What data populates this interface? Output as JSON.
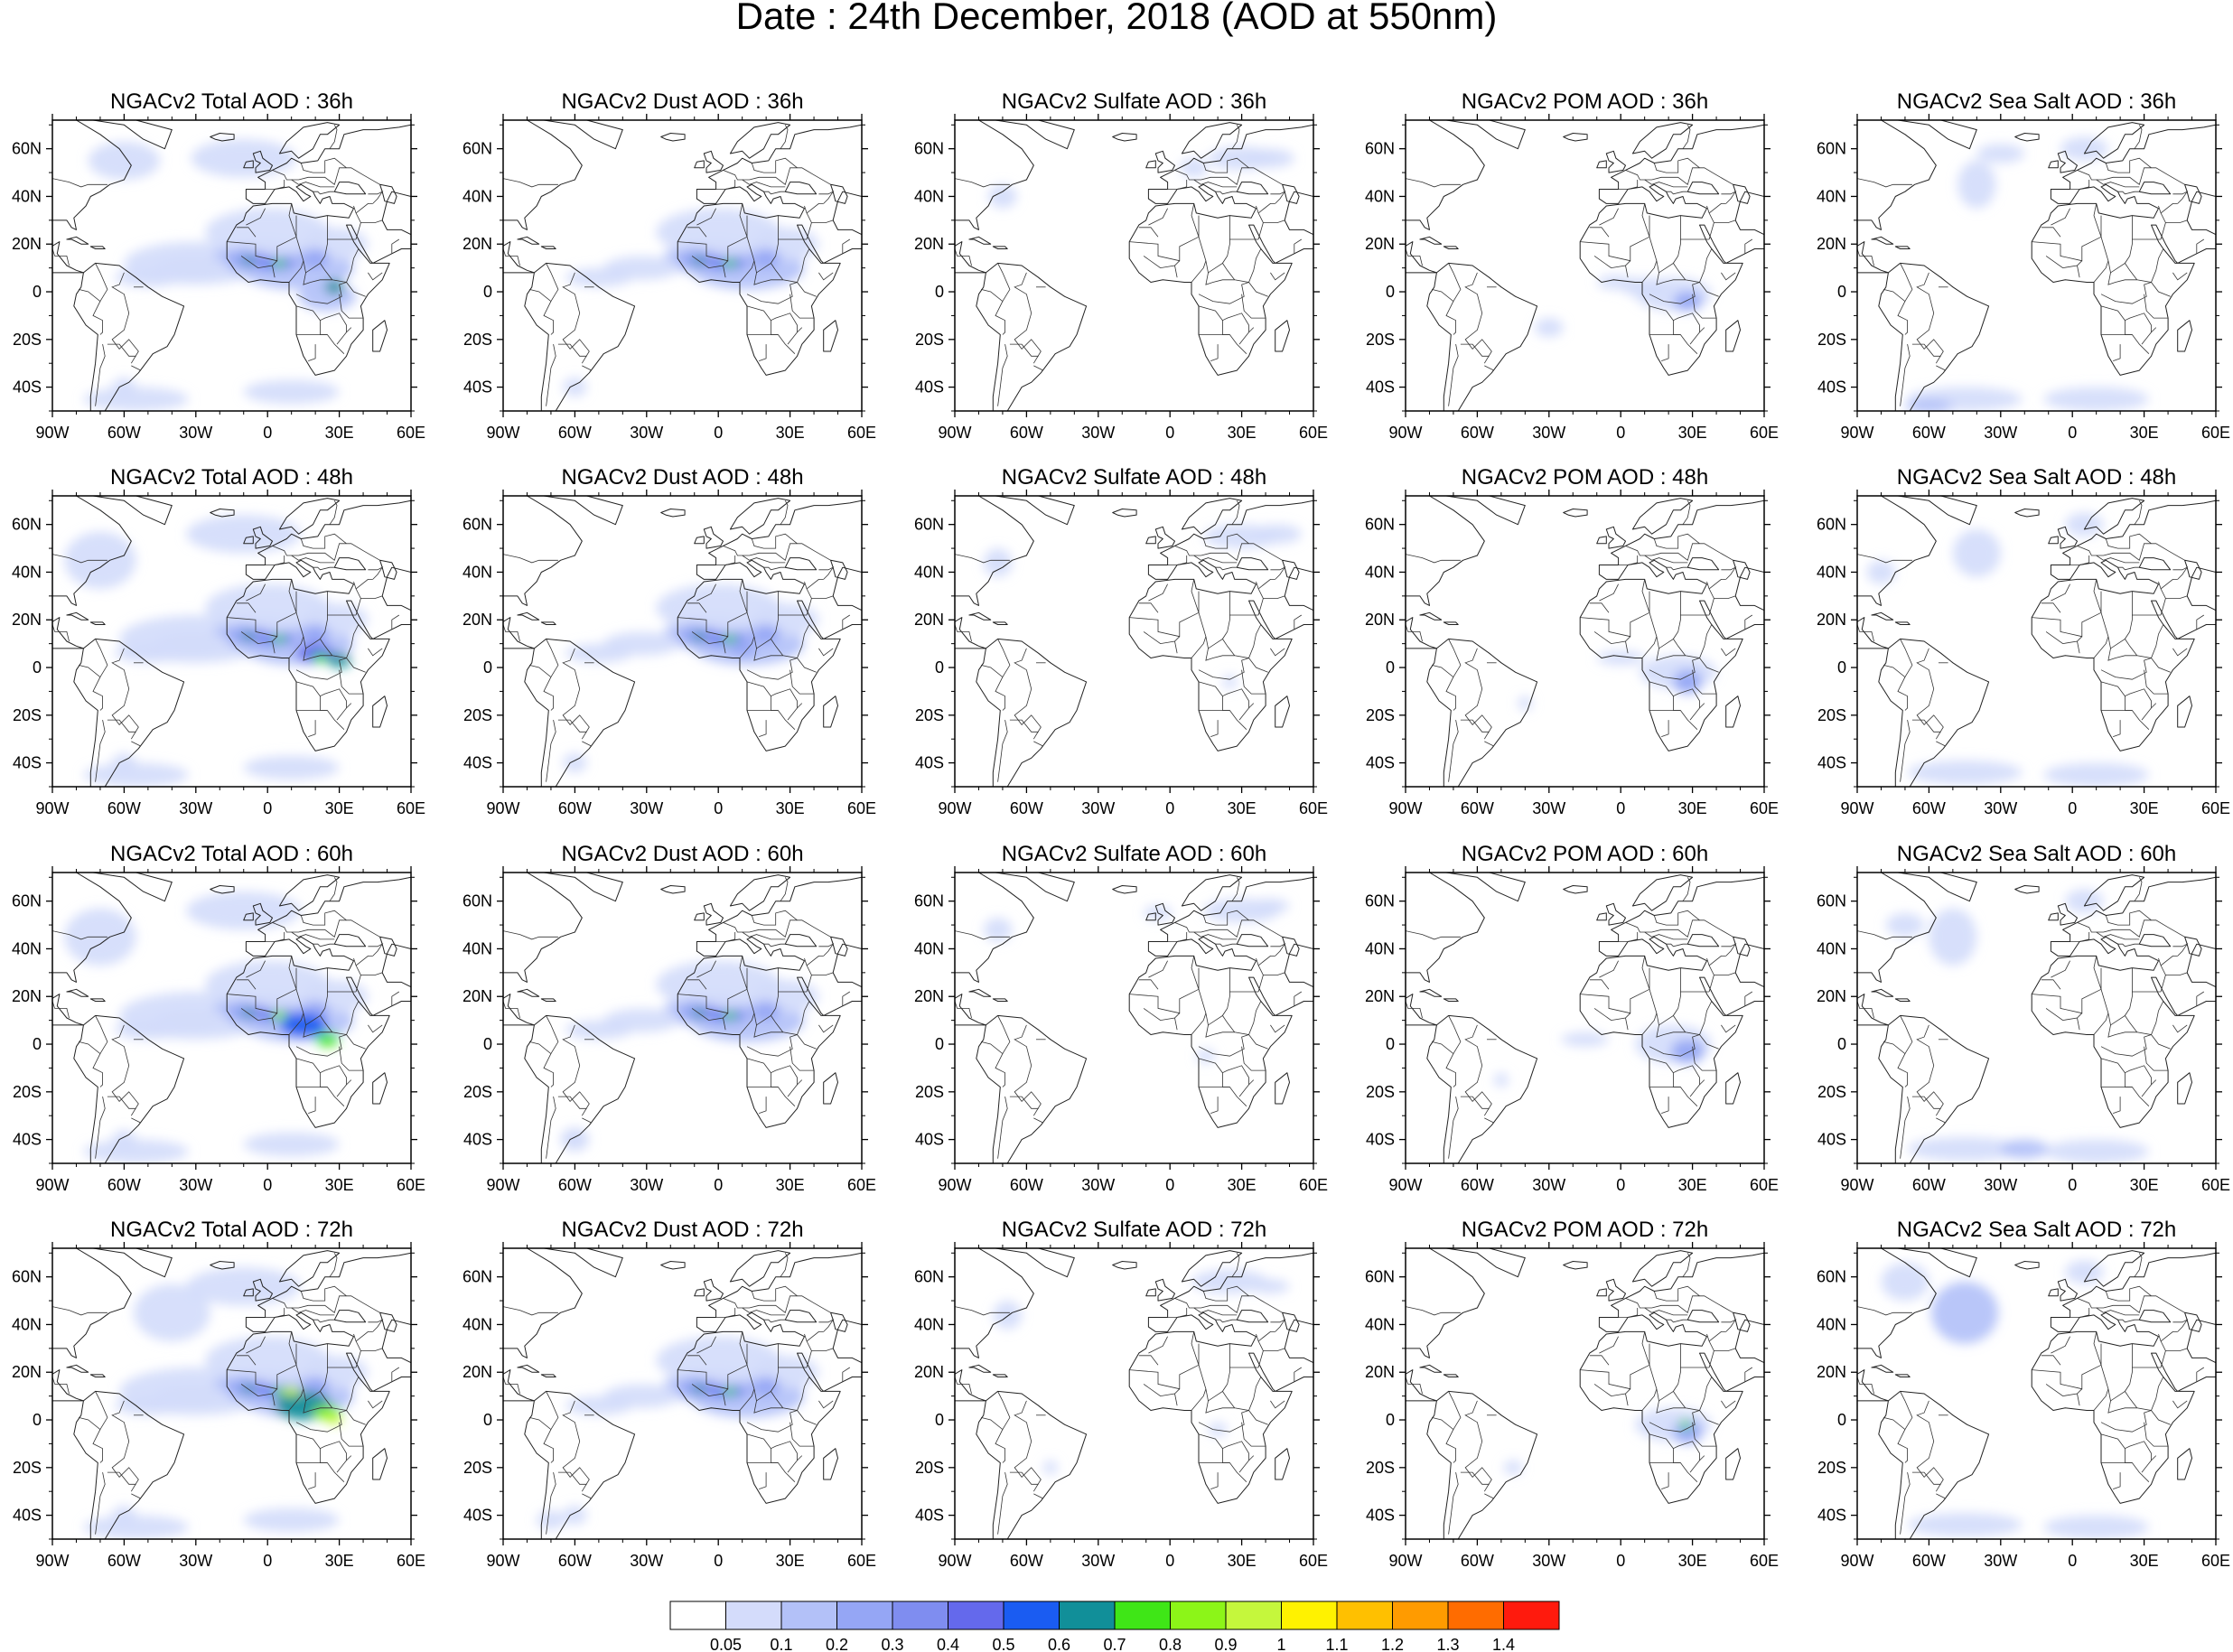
{
  "figure": {
    "title": "Date : 24th December, 2018 (AOD at 550nm)"
  },
  "columns": [
    {
      "id": "total",
      "variable": "NGACv2 Total AOD"
    },
    {
      "id": "dust",
      "variable": "NGACv2 Dust AOD"
    },
    {
      "id": "sulfate",
      "variable": "NGACv2 Sulfate AOD"
    },
    {
      "id": "pom",
      "variable": "NGACv2 POM AOD"
    },
    {
      "id": "seasalt",
      "variable": "NGACv2 Sea Salt AOD"
    }
  ],
  "forecast_hours": [
    "36h",
    "48h",
    "60h",
    "72h"
  ],
  "panel_titles": [
    [
      "NGACv2 Total AOD : 36h",
      "NGACv2 Dust AOD : 36h",
      "NGACv2 Sulfate AOD : 36h",
      "NGACv2 POM AOD : 36h",
      "NGACv2 Sea Salt AOD : 36h"
    ],
    [
      "NGACv2 Total AOD : 48h",
      "NGACv2 Dust AOD : 48h",
      "NGACv2 Sulfate AOD : 48h",
      "NGACv2 POM AOD : 48h",
      "NGACv2 Sea Salt AOD : 48h"
    ],
    [
      "NGACv2 Total AOD : 60h",
      "NGACv2 Dust AOD : 60h",
      "NGACv2 Sulfate AOD : 60h",
      "NGACv2 POM AOD : 60h",
      "NGACv2 Sea Salt AOD : 60h"
    ],
    [
      "NGACv2 Total AOD : 72h",
      "NGACv2 Dust AOD : 72h",
      "NGACv2 Sulfate AOD : 72h",
      "NGACv2 POM AOD : 72h",
      "NGACv2 Sea Salt  AOD : 72h"
    ]
  ],
  "map": {
    "lon_range": [
      -90,
      60
    ],
    "lat_range": [
      -50,
      72
    ],
    "lon_ticks": [
      "90W",
      "60W",
      "30W",
      "0",
      "30E",
      "60E"
    ],
    "lat_ticks": [
      "60N",
      "40N",
      "20N",
      "0",
      "20S",
      "40S"
    ],
    "lon_tick_values": [
      -90,
      -60,
      -30,
      0,
      30,
      60
    ],
    "lat_tick_values": [
      60,
      40,
      20,
      0,
      -20,
      -40
    ]
  },
  "colorbar": {
    "labels": [
      "0.05",
      "0.1",
      "0.2",
      "0.3",
      "0.4",
      "0.5",
      "0.6",
      "0.7",
      "0.8",
      "0.9",
      "1",
      "1.1",
      "1.2",
      "1.3",
      "1.4"
    ],
    "colors": [
      "#ffffff",
      "#d4dcfb",
      "#b3c1f8",
      "#95a6f5",
      "#7f8df0",
      "#6469ec",
      "#1a5cf2",
      "#118f99",
      "#3fe617",
      "#8cf518",
      "#c5f73c",
      "#fff200",
      "#ffc000",
      "#ff9b00",
      "#ff6c00",
      "#ff1a0d"
    ]
  }
}
